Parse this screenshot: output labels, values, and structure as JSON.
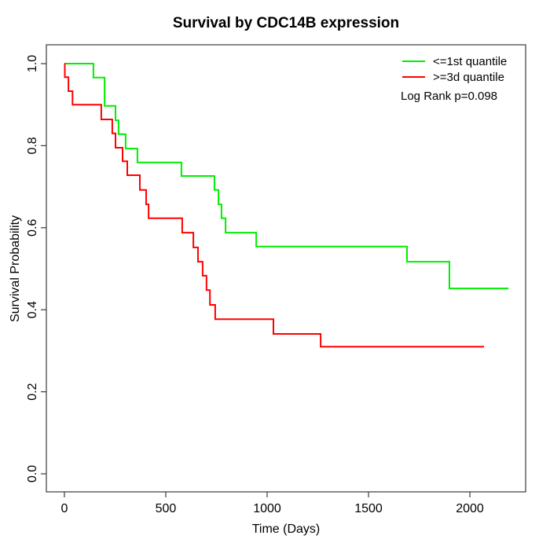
{
  "chart_data": {
    "type": "line",
    "subtype": "kaplan-meier-step",
    "title": "Survival by CDC14B expression",
    "xlabel": "Time (Days)",
    "ylabel": "Survival Probability",
    "xlim": [
      -89,
      2275
    ],
    "ylim": [
      -0.044,
      1.046
    ],
    "x_ticks": [
      0,
      500,
      1000,
      1500,
      2000
    ],
    "x_tick_labels": [
      "0",
      "500",
      "1000",
      "1500",
      "2000"
    ],
    "y_ticks": [
      0.0,
      0.2,
      0.4,
      0.6,
      0.8,
      1.0
    ],
    "y_tick_labels": [
      "0.0",
      "0.2",
      "0.4",
      "0.6",
      "0.8",
      "1.0"
    ],
    "grid": false,
    "legend_position": "top-right",
    "annotation": "Log Rank p=0.098",
    "axis_color": "#3a3a3a",
    "series": [
      {
        "name": "<=1st quantile",
        "color": "#00ee00",
        "end_time": 2190,
        "points": [
          [
            0,
            1.0
          ],
          [
            143,
            0.966
          ],
          [
            198,
            0.897
          ],
          [
            252,
            0.862
          ],
          [
            267,
            0.828
          ],
          [
            302,
            0.793
          ],
          [
            360,
            0.759
          ],
          [
            577,
            0.726
          ],
          [
            740,
            0.692
          ],
          [
            760,
            0.657
          ],
          [
            775,
            0.623
          ],
          [
            795,
            0.588
          ],
          [
            946,
            0.554
          ],
          [
            1690,
            0.517
          ],
          [
            1899,
            0.452
          ]
        ]
      },
      {
        "name": ">=3d quantile",
        "color": "#ff0000",
        "end_time": 2070,
        "points": [
          [
            0,
            1.0
          ],
          [
            2,
            0.967
          ],
          [
            20,
            0.933
          ],
          [
            40,
            0.9
          ],
          [
            182,
            0.864
          ],
          [
            236,
            0.83
          ],
          [
            252,
            0.795
          ],
          [
            287,
            0.762
          ],
          [
            310,
            0.728
          ],
          [
            372,
            0.692
          ],
          [
            403,
            0.657
          ],
          [
            415,
            0.623
          ],
          [
            581,
            0.588
          ],
          [
            636,
            0.552
          ],
          [
            659,
            0.517
          ],
          [
            682,
            0.483
          ],
          [
            701,
            0.448
          ],
          [
            718,
            0.412
          ],
          [
            744,
            0.377
          ],
          [
            1031,
            0.341
          ],
          [
            1264,
            0.31
          ]
        ]
      }
    ]
  }
}
